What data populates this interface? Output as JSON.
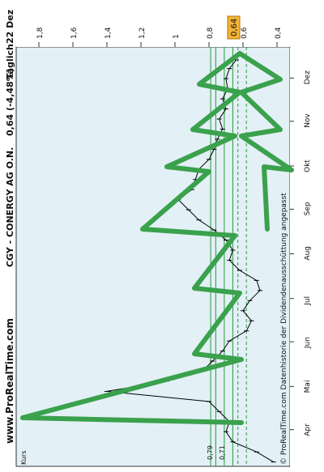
{
  "header": {
    "site": "www.ProRealTime.com",
    "instrument": "CGY - CONERGY AG O.N.",
    "quote": "0,64 (-4,48%)",
    "period": "Täglich",
    "date": "22 Dez"
  },
  "footer": {
    "copyright": "© ProRealTime.com Datenhistorie der Dividendenausschüttung angepasst"
  },
  "kurs_label": "Kurs",
  "price_badge": {
    "value": "0,64",
    "color": "#f2b233"
  },
  "left_labels": [
    "0,79",
    "0,71"
  ],
  "colors": {
    "plot_bg": "#e3f0f6",
    "price_line": "#000000",
    "tree": "#3aa14c",
    "support": "#2a9a3a"
  },
  "chart_data": {
    "type": "line",
    "title": "CGY - CONERGY AG O.N.",
    "xlabel": "",
    "ylabel": "Kurs",
    "ylim": [
      0.3,
      2.0
    ],
    "y_ticks": [
      {
        "value": 0.4,
        "label": "0,4"
      },
      {
        "value": 0.6,
        "label": "0,6"
      },
      {
        "value": 0.8,
        "label": "0,8"
      },
      {
        "value": 1.0,
        "label": "1"
      },
      {
        "value": 1.2,
        "label": "1,2"
      },
      {
        "value": 1.4,
        "label": "1,4"
      },
      {
        "value": 1.6,
        "label": "1,6"
      },
      {
        "value": 1.8,
        "label": "1,8"
      }
    ],
    "x_ticks": [
      "Apr",
      "Mai",
      "Jun",
      "Jul",
      "Aug",
      "Sep",
      "Okt",
      "Nov",
      "Dez"
    ],
    "support_levels": [
      0.79,
      0.76,
      0.71,
      0.66
    ],
    "dashed_levels": [
      0.63,
      0.58
    ],
    "series": [
      {
        "x": [
          "2009-03-18",
          "2009-03-25",
          "2009-04-01",
          "2009-04-08",
          "2009-04-15",
          "2009-04-22",
          "2009-04-29",
          "2009-05-06",
          "2009-05-13",
          "2009-05-20",
          "2009-05-27",
          "2009-06-03",
          "2009-06-10",
          "2009-06-17",
          "2009-06-24",
          "2009-07-01",
          "2009-07-08",
          "2009-07-15",
          "2009-07-22",
          "2009-07-29",
          "2009-08-05",
          "2009-08-12",
          "2009-08-19",
          "2009-08-26",
          "2009-09-02",
          "2009-09-09",
          "2009-09-16",
          "2009-09-23",
          "2009-09-30",
          "2009-10-07",
          "2009-10-14",
          "2009-10-21",
          "2009-10-28",
          "2009-11-04",
          "2009-11-11",
          "2009-11-18",
          "2009-11-25",
          "2009-12-02",
          "2009-12-09",
          "2009-12-16",
          "2009-12-22"
        ],
        "values": [
          0.42,
          0.52,
          0.66,
          0.7,
          0.68,
          0.74,
          0.8,
          1.4,
          1.05,
          0.84,
          0.78,
          0.72,
          0.68,
          0.58,
          0.55,
          0.6,
          0.56,
          0.5,
          0.52,
          0.62,
          0.68,
          0.66,
          0.7,
          0.77,
          0.86,
          0.92,
          0.98,
          0.9,
          0.88,
          0.86,
          0.8,
          0.77,
          0.75,
          0.72,
          0.74,
          0.7,
          0.72,
          0.69,
          0.7,
          0.68,
          0.64
        ]
      }
    ]
  }
}
